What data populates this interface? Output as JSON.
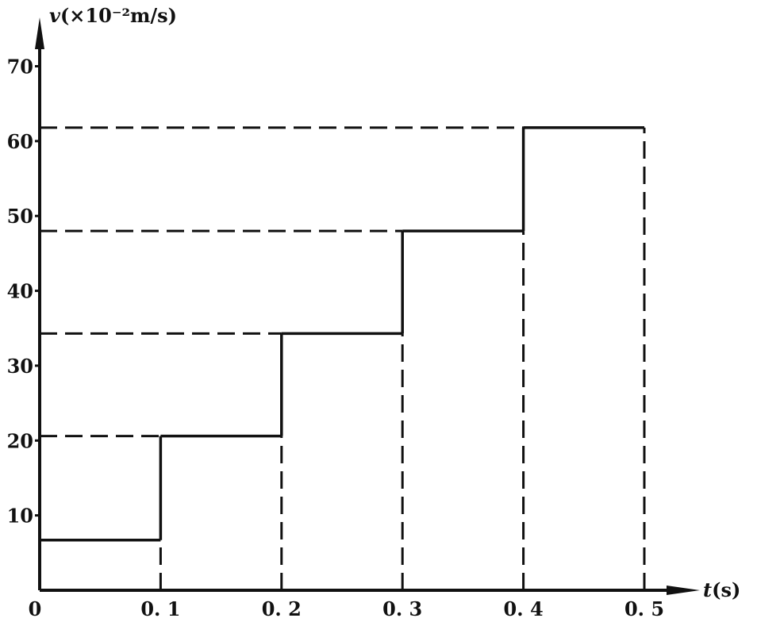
{
  "chart_data": {
    "type": "line",
    "step": true,
    "ylabel_var": "v",
    "ylabel_unit": "(×10⁻²m/s)",
    "xlabel_var": "t",
    "xlabel_unit": "(s)",
    "x_ticks": [
      "0",
      "0.1",
      "0.2",
      "0.3",
      "0.4",
      "0.5"
    ],
    "y_ticks": [
      "10",
      "20",
      "30",
      "40",
      "50",
      "60",
      "70"
    ],
    "xlim": [
      0,
      0.5
    ],
    "ylim": [
      0,
      70
    ],
    "grid": false,
    "segments": [
      {
        "t_start": 0.0,
        "t_end": 0.1,
        "v": 6.7
      },
      {
        "t_start": 0.1,
        "t_end": 0.2,
        "v": 20.6
      },
      {
        "t_start": 0.2,
        "t_end": 0.3,
        "v": 34.3
      },
      {
        "t_start": 0.3,
        "t_end": 0.4,
        "v": 48.0
      },
      {
        "t_start": 0.4,
        "t_end": 0.5,
        "v": 61.8
      }
    ],
    "line_color": "#111111"
  }
}
